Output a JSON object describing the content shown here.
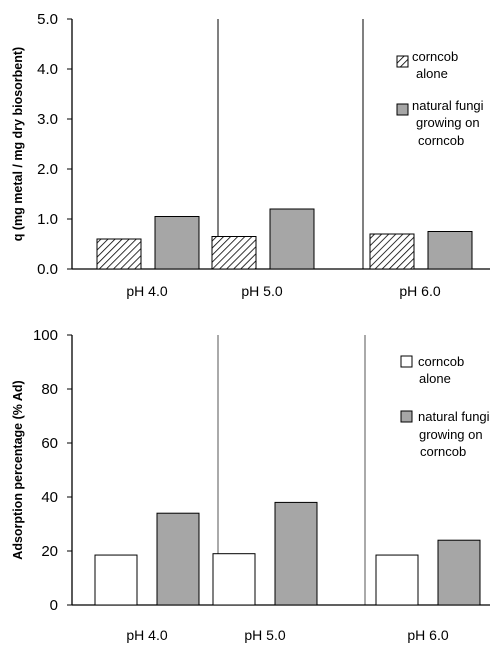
{
  "colors": {
    "series_a": "#ffffff",
    "series_b": "#a6a6a6",
    "axis": "#000000",
    "divider_top": "#000000",
    "divider_bottom": "#555555"
  },
  "chart_data": [
    {
      "type": "bar",
      "categories": [
        "pH 4.0",
        "pH 5.0",
        "pH 6.0"
      ],
      "ylabel": "q (mg metal / mg dry biosorbent)",
      "ylim": [
        0,
        5
      ],
      "yticks": [
        "0.0",
        "1.0",
        "2.0",
        "3.0",
        "4.0",
        "5.0"
      ],
      "series": [
        {
          "name": "corncob alone",
          "legend_lines": [
            "corncob",
            "alone"
          ],
          "pattern": "hatch",
          "values": [
            0.6,
            0.65,
            0.7
          ]
        },
        {
          "name": "natural fungi growing on corncob",
          "legend_lines": [
            "natural fungi",
            "growing on",
            "corncob"
          ],
          "pattern": "gray",
          "values": [
            1.05,
            1.2,
            0.75
          ]
        }
      ],
      "legend": "top-right"
    },
    {
      "type": "bar",
      "categories": [
        "pH 4.0",
        "pH 5.0",
        "pH 6.0"
      ],
      "ylabel": "Adsorption percentage (% Ad)",
      "ylim": [
        0,
        100
      ],
      "yticks": [
        "0",
        "20",
        "40",
        "60",
        "80",
        "100"
      ],
      "series": [
        {
          "name": "corncob alone",
          "legend_lines": [
            "corncob",
            "alone"
          ],
          "pattern": "white",
          "values": [
            18.5,
            19,
            18.5
          ]
        },
        {
          "name": "natural fungi growing on corncob",
          "legend_lines": [
            "natural fungi",
            "growing on",
            "corncob"
          ],
          "pattern": "gray",
          "values": [
            34,
            38,
            24
          ]
        }
      ],
      "legend": "top-right"
    }
  ]
}
